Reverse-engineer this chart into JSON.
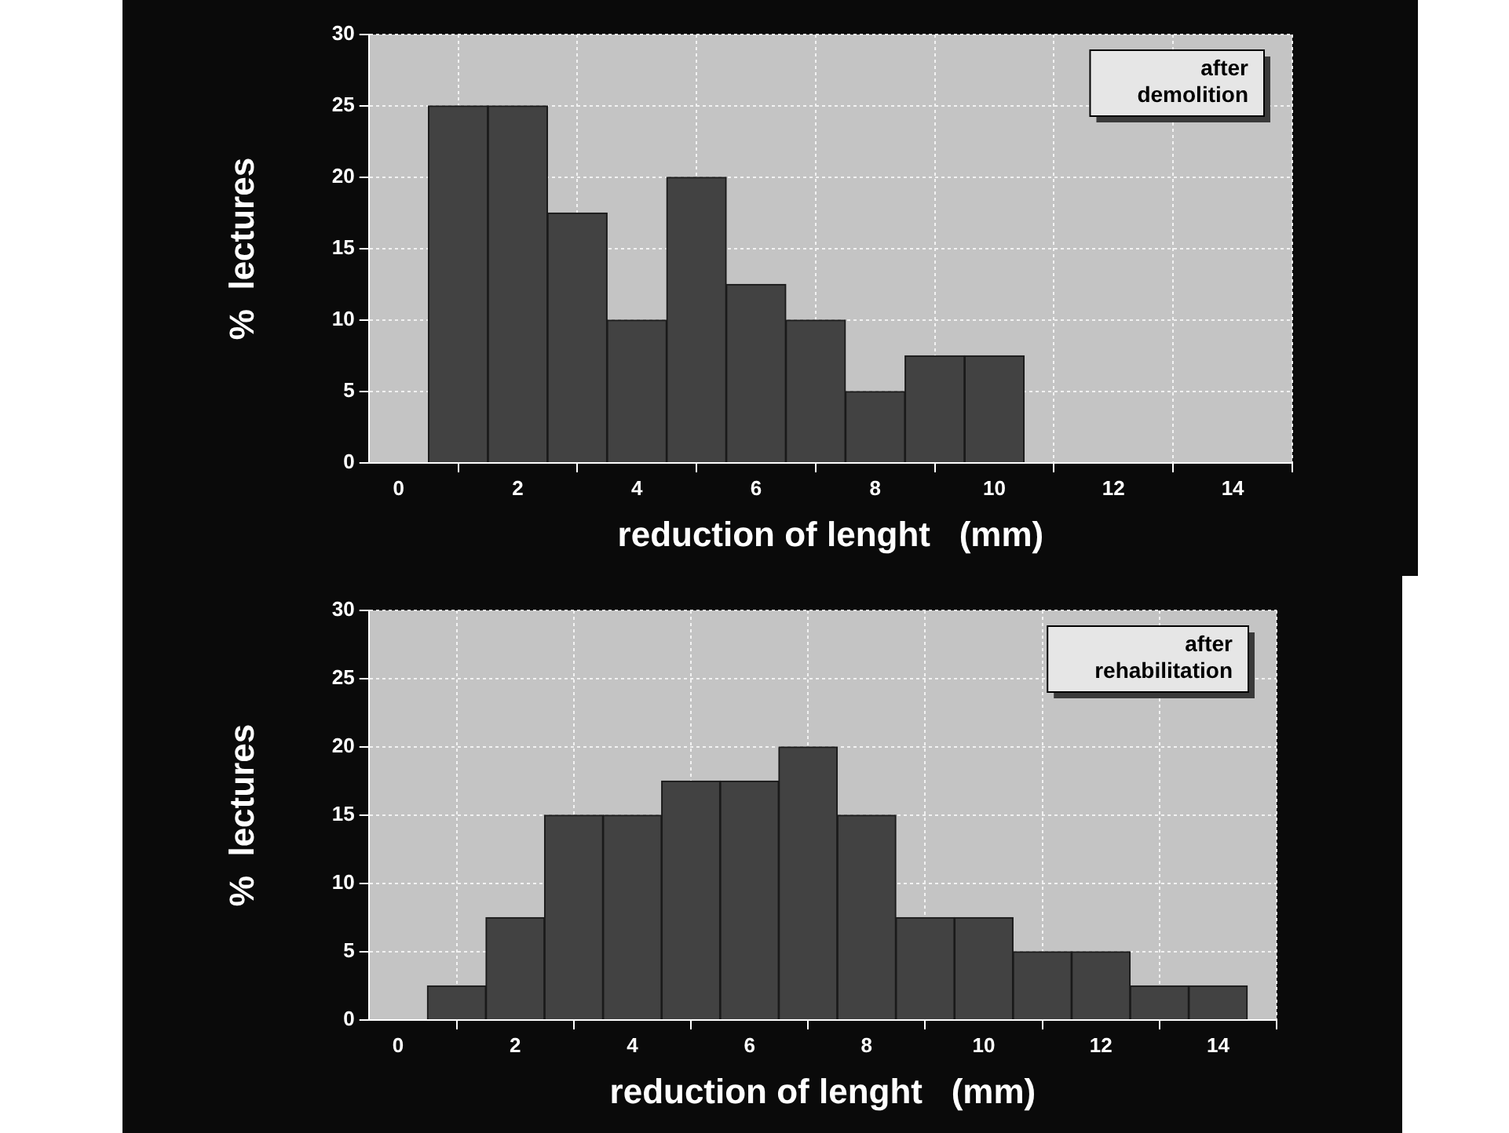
{
  "chart_data": [
    {
      "type": "histogram",
      "xlabel": "reduction of lenght   (mm)",
      "ylabel": "%  lectures",
      "annotations": [
        "after demolition"
      ],
      "bins": [
        0.5,
        1.5,
        2.5,
        3.5,
        4.5,
        5.5,
        6.5,
        7.5,
        8.5,
        9.5,
        10.5
      ],
      "values": [
        25,
        25,
        17.5,
        10,
        20,
        12.5,
        10,
        5,
        7.5,
        7.5
      ],
      "color": "#424242",
      "xlim": [
        -0.5,
        15
      ],
      "ylim": [
        0,
        30
      ],
      "xticks": [
        0,
        2,
        4,
        6,
        8,
        10,
        12,
        14
      ],
      "yticks": [
        0,
        5,
        10,
        15,
        20,
        25,
        30
      ],
      "grid": true
    },
    {
      "type": "histogram",
      "xlabel": "reduction of lenght   (mm)",
      "ylabel": "%  lectures",
      "annotations": [
        "after rehabilitation"
      ],
      "bins": [
        0.5,
        1.5,
        2.5,
        3.5,
        4.5,
        5.5,
        6.5,
        7.5,
        8.5,
        9.5,
        10.5,
        11.5,
        12.5,
        13.5,
        14.5
      ],
      "values": [
        2.5,
        7.5,
        15,
        15,
        17.5,
        17.5,
        20,
        15,
        7.5,
        7.5,
        5,
        5,
        2.5,
        2.5
      ],
      "color": "#424242",
      "xlim": [
        -0.5,
        15
      ],
      "ylim": [
        0,
        30
      ],
      "xticks": [
        0,
        2,
        4,
        6,
        8,
        10,
        12,
        14
      ],
      "yticks": [
        0,
        5,
        10,
        15,
        20,
        25,
        30
      ],
      "grid": true
    }
  ]
}
